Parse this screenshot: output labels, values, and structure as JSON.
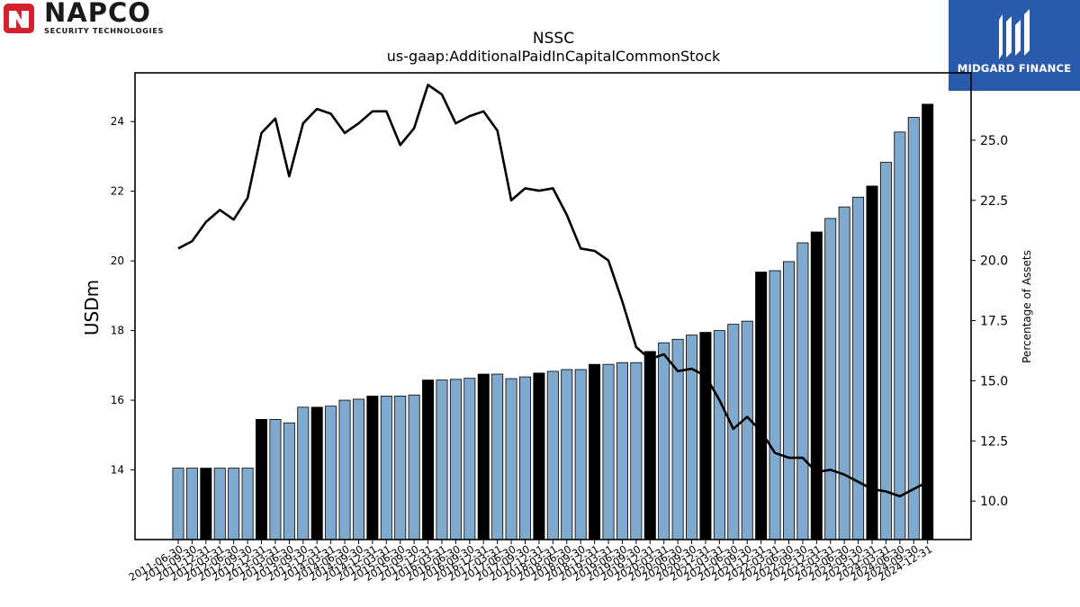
{
  "logos": {
    "left": {
      "name": "NAPCO",
      "subtitle": "SECURITY TECHNOLOGIES"
    },
    "right": {
      "name": "MIDGARD FINANCE",
      "background": "#2a5aab"
    }
  },
  "chart_data": {
    "type": "bar+line",
    "title": "NSSC",
    "subtitle": "us-gaap:AdditionalPaidInCapitalCommonStock",
    "ylabel": "USDm",
    "y2label": "Percentage of Assets",
    "ylim": [
      12,
      25.4
    ],
    "y2lim": [
      8.4,
      27.8
    ],
    "yticks": [
      14,
      16,
      18,
      20,
      22,
      24
    ],
    "y2ticks": [
      10.0,
      12.5,
      15.0,
      17.5,
      20.0,
      22.5,
      25.0
    ],
    "bar_color": "#7fa9cd",
    "highlight_color": "#000000",
    "line_color": "#000000",
    "categories": [
      "2011-06-30",
      "2011-09-30",
      "2011-12-31",
      "2012-03-31",
      "2012-06-30",
      "2012-09-30",
      "2012-12-31",
      "2013-03-31",
      "2013-06-30",
      "2013-09-30",
      "2013-12-31",
      "2014-03-31",
      "2014-06-30",
      "2014-09-30",
      "2014-12-31",
      "2015-03-31",
      "2015-06-30",
      "2015-09-30",
      "2015-12-31",
      "2016-03-31",
      "2016-06-30",
      "2016-09-30",
      "2016-12-31",
      "2017-03-31",
      "2017-06-30",
      "2017-09-30",
      "2017-12-31",
      "2018-03-31",
      "2018-06-30",
      "2018-09-30",
      "2018-12-31",
      "2019-03-31",
      "2019-06-30",
      "2019-09-30",
      "2019-12-31",
      "2020-03-31",
      "2020-06-30",
      "2020-09-30",
      "2020-12-31",
      "2021-03-31",
      "2021-06-30",
      "2021-09-30",
      "2021-12-31",
      "2022-03-31",
      "2022-06-30",
      "2022-09-30",
      "2022-12-31",
      "2023-03-31",
      "2023-06-30",
      "2023-09-30",
      "2023-12-31",
      "2024-03-31",
      "2024-06-30",
      "2024-09-30",
      "2024-12-31"
    ],
    "series": [
      {
        "kind": "bar",
        "values": [
          14.05,
          14.05,
          14.05,
          14.05,
          14.05,
          14.05,
          15.45,
          15.45,
          15.35,
          15.8,
          15.8,
          15.83,
          16.0,
          16.03,
          16.12,
          16.12,
          16.12,
          16.15,
          16.58,
          16.58,
          16.6,
          16.63,
          16.75,
          16.75,
          16.62,
          16.67,
          16.78,
          16.83,
          16.88,
          16.88,
          17.03,
          17.03,
          17.08,
          17.08,
          17.4,
          17.65,
          17.75,
          17.87,
          17.95,
          18.0,
          18.18,
          18.27,
          19.68,
          19.72,
          19.98,
          20.52,
          20.83,
          21.22,
          21.55,
          21.83,
          22.15,
          22.83,
          23.7,
          24.12,
          24.5
        ],
        "highlighted": [
          false,
          false,
          true,
          false,
          false,
          false,
          true,
          false,
          false,
          false,
          true,
          false,
          false,
          false,
          true,
          false,
          false,
          false,
          true,
          false,
          false,
          false,
          true,
          false,
          false,
          false,
          true,
          false,
          false,
          false,
          true,
          false,
          false,
          false,
          true,
          false,
          false,
          false,
          true,
          false,
          false,
          false,
          true,
          false,
          false,
          false,
          true,
          false,
          false,
          false,
          true,
          false,
          false,
          false,
          true
        ]
      },
      {
        "kind": "line",
        "values": [
          20.5,
          20.8,
          21.6,
          22.1,
          21.7,
          22.6,
          25.3,
          25.9,
          23.5,
          25.7,
          26.3,
          26.1,
          25.3,
          25.7,
          26.2,
          26.2,
          24.8,
          25.5,
          27.3,
          26.9,
          25.7,
          26.0,
          26.2,
          25.4,
          22.5,
          23.0,
          22.9,
          23.0,
          21.9,
          20.5,
          20.4,
          20.0,
          18.3,
          16.4,
          15.9,
          16.1,
          15.4,
          15.5,
          15.2,
          14.2,
          13.0,
          13.5,
          12.9,
          12.0,
          11.8,
          11.8,
          11.2,
          11.3,
          11.1,
          10.8,
          10.5,
          10.4,
          10.2,
          10.5,
          10.8
        ]
      }
    ],
    "grid": false,
    "legend": "none"
  }
}
